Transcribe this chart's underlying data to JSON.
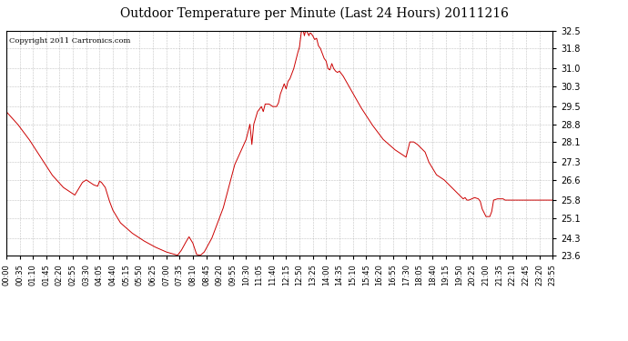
{
  "title": "Outdoor Temperature per Minute (Last 24 Hours) 20111216",
  "copyright": "Copyright 2011 Cartronics.com",
  "line_color": "#cc0000",
  "background_color": "#ffffff",
  "grid_color": "#999999",
  "y_ticks": [
    23.6,
    24.3,
    25.1,
    25.8,
    26.6,
    27.3,
    28.1,
    28.8,
    29.5,
    30.3,
    31.0,
    31.8,
    32.5
  ],
  "y_min": 23.6,
  "y_max": 32.5,
  "x_labels": [
    "00:00",
    "00:35",
    "01:10",
    "01:45",
    "02:20",
    "02:55",
    "03:30",
    "04:05",
    "04:40",
    "05:15",
    "05:50",
    "06:25",
    "07:00",
    "07:35",
    "08:10",
    "08:45",
    "09:20",
    "09:55",
    "10:30",
    "11:05",
    "11:40",
    "12:15",
    "12:50",
    "13:25",
    "14:00",
    "14:35",
    "15:10",
    "15:45",
    "16:20",
    "16:55",
    "17:30",
    "18:05",
    "18:40",
    "19:15",
    "19:50",
    "20:25",
    "21:00",
    "21:35",
    "22:10",
    "22:45",
    "23:20",
    "23:55"
  ],
  "key_points": [
    [
      0,
      29.3
    ],
    [
      30,
      28.8
    ],
    [
      60,
      28.2
    ],
    [
      90,
      27.5
    ],
    [
      120,
      26.8
    ],
    [
      150,
      26.3
    ],
    [
      180,
      26.0
    ],
    [
      200,
      26.5
    ],
    [
      210,
      26.6
    ],
    [
      220,
      26.5
    ],
    [
      230,
      26.4
    ],
    [
      240,
      26.35
    ],
    [
      245,
      26.55
    ],
    [
      250,
      26.5
    ],
    [
      260,
      26.3
    ],
    [
      270,
      25.8
    ],
    [
      280,
      25.4
    ],
    [
      300,
      24.9
    ],
    [
      330,
      24.5
    ],
    [
      360,
      24.2
    ],
    [
      390,
      23.95
    ],
    [
      420,
      23.75
    ],
    [
      450,
      23.62
    ],
    [
      460,
      23.82
    ],
    [
      470,
      24.1
    ],
    [
      480,
      24.35
    ],
    [
      490,
      24.1
    ],
    [
      500,
      23.65
    ],
    [
      510,
      23.62
    ],
    [
      520,
      23.75
    ],
    [
      540,
      24.3
    ],
    [
      570,
      25.5
    ],
    [
      600,
      27.2
    ],
    [
      630,
      28.2
    ],
    [
      640,
      28.8
    ],
    [
      645,
      28.0
    ],
    [
      650,
      28.8
    ],
    [
      660,
      29.3
    ],
    [
      670,
      29.5
    ],
    [
      675,
      29.3
    ],
    [
      680,
      29.6
    ],
    [
      690,
      29.6
    ],
    [
      700,
      29.5
    ],
    [
      710,
      29.5
    ],
    [
      715,
      29.65
    ],
    [
      720,
      30.0
    ],
    [
      730,
      30.4
    ],
    [
      735,
      30.2
    ],
    [
      740,
      30.5
    ],
    [
      745,
      30.6
    ],
    [
      750,
      30.8
    ],
    [
      755,
      31.0
    ],
    [
      760,
      31.3
    ],
    [
      765,
      31.6
    ],
    [
      770,
      31.85
    ],
    [
      775,
      32.45
    ],
    [
      780,
      32.5
    ],
    [
      783,
      32.3
    ],
    [
      786,
      32.5
    ],
    [
      790,
      32.45
    ],
    [
      795,
      32.3
    ],
    [
      797,
      32.4
    ],
    [
      800,
      32.4
    ],
    [
      805,
      32.3
    ],
    [
      810,
      32.15
    ],
    [
      815,
      32.2
    ],
    [
      820,
      31.9
    ],
    [
      825,
      31.8
    ],
    [
      830,
      31.6
    ],
    [
      835,
      31.4
    ],
    [
      840,
      31.3
    ],
    [
      845,
      31.0
    ],
    [
      850,
      30.95
    ],
    [
      855,
      31.2
    ],
    [
      860,
      31.0
    ],
    [
      865,
      30.9
    ],
    [
      870,
      30.85
    ],
    [
      875,
      30.9
    ],
    [
      885,
      30.7
    ],
    [
      900,
      30.3
    ],
    [
      930,
      29.5
    ],
    [
      960,
      28.8
    ],
    [
      990,
      28.2
    ],
    [
      1020,
      27.8
    ],
    [
      1050,
      27.5
    ],
    [
      1060,
      28.1
    ],
    [
      1070,
      28.1
    ],
    [
      1080,
      28.0
    ],
    [
      1090,
      27.85
    ],
    [
      1100,
      27.7
    ],
    [
      1110,
      27.3
    ],
    [
      1130,
      26.8
    ],
    [
      1150,
      26.6
    ],
    [
      1170,
      26.3
    ],
    [
      1190,
      26.0
    ],
    [
      1200,
      25.85
    ],
    [
      1205,
      25.9
    ],
    [
      1210,
      25.8
    ],
    [
      1215,
      25.8
    ],
    [
      1230,
      25.9
    ],
    [
      1240,
      25.85
    ],
    [
      1245,
      25.75
    ],
    [
      1250,
      25.45
    ],
    [
      1260,
      25.15
    ],
    [
      1270,
      25.15
    ],
    [
      1275,
      25.35
    ],
    [
      1280,
      25.8
    ],
    [
      1290,
      25.85
    ],
    [
      1300,
      25.85
    ],
    [
      1305,
      25.85
    ],
    [
      1310,
      25.8
    ],
    [
      1320,
      25.8
    ],
    [
      1380,
      25.8
    ],
    [
      1435,
      25.8
    ]
  ]
}
